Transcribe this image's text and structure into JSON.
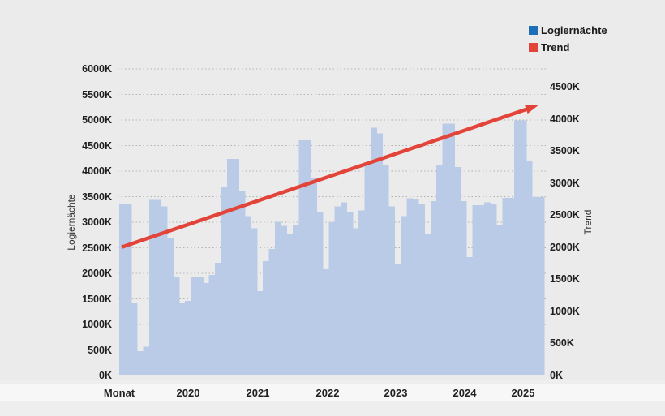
{
  "legend": {
    "items": [
      {
        "label": "Logiernächte",
        "color": "#1d6fb8"
      },
      {
        "label": "Trend",
        "color": "#e3443a"
      }
    ]
  },
  "axes": {
    "left": {
      "title": "Logiernächte",
      "ticks": [
        "0K",
        "500K",
        "1000K",
        "1500K",
        "2000K",
        "2500K",
        "3000K",
        "3500K",
        "4000K",
        "4500K",
        "5000K",
        "5500K",
        "6000K"
      ]
    },
    "right": {
      "title": "Trend",
      "ticks": [
        "0K",
        "500K",
        "1000K",
        "1500K",
        "2000K",
        "2500K",
        "3000K",
        "3500K",
        "4000K",
        "4500K"
      ]
    },
    "x": {
      "title": "Monat",
      "year_labels": [
        "2020",
        "2021",
        "2022",
        "2023",
        "2024",
        "2025"
      ]
    }
  },
  "chart_data": {
    "type": "bar",
    "title": "",
    "x": [
      "2020-01",
      "2020-02",
      "2020-03",
      "2020-04",
      "2020-05",
      "2020-06",
      "2020-07",
      "2020-08",
      "2020-09",
      "2020-10",
      "2020-11",
      "2020-12",
      "2021-01",
      "2021-02",
      "2021-03",
      "2021-04",
      "2021-05",
      "2021-06",
      "2021-07",
      "2021-08",
      "2021-09",
      "2021-10",
      "2021-11",
      "2021-12",
      "2022-01",
      "2022-02",
      "2022-03",
      "2022-04",
      "2022-05",
      "2022-06",
      "2022-07",
      "2022-08",
      "2022-09",
      "2022-10",
      "2022-11",
      "2022-12",
      "2023-01",
      "2023-02",
      "2023-03",
      "2023-04",
      "2023-05",
      "2023-06",
      "2023-07",
      "2023-08",
      "2023-09",
      "2023-10",
      "2023-11",
      "2023-12",
      "2024-01",
      "2024-02",
      "2024-03",
      "2024-04",
      "2024-05",
      "2024-06",
      "2024-07",
      "2024-08",
      "2024-09",
      "2024-10",
      "2024-11",
      "2024-12",
      "2025-01",
      "2025-02",
      "2025-03",
      "2025-04",
      "2025-05",
      "2025-06",
      "2025-07",
      "2025-08",
      "2025-09",
      "2025-10",
      "2025-11"
    ],
    "series": [
      {
        "name": "Logiernächte",
        "render": "bar",
        "axis": "left",
        "color": "#b9cbe7",
        "unit": "K",
        "values": [
          3360,
          3360,
          1410,
          480,
          560,
          3440,
          3440,
          3310,
          2690,
          1920,
          1410,
          1460,
          1920,
          1920,
          1810,
          1970,
          2210,
          3680,
          4240,
          4240,
          3600,
          3120,
          2880,
          1650,
          2240,
          2480,
          3010,
          2930,
          2770,
          2950,
          4600,
          4600,
          3870,
          3200,
          2080,
          3000,
          3310,
          3390,
          3200,
          2880,
          3230,
          4160,
          4850,
          4740,
          4130,
          3310,
          2190,
          3120,
          3470,
          3450,
          3360,
          2770,
          3410,
          4130,
          4930,
          4930,
          4080,
          3410,
          2320,
          3330,
          3330,
          3390,
          3360,
          2950,
          3480,
          3480,
          4990,
          4990,
          4190,
          3490,
          3490
        ]
      },
      {
        "name": "Trend",
        "render": "line-arrow",
        "axis": "right",
        "color": "#e3443a",
        "unit": "K",
        "start_value": 2000,
        "end_value": 4200
      }
    ],
    "left_axis": {
      "label": "Logiernächte",
      "range": [
        0,
        6000
      ],
      "tick_step": 500,
      "unit": "K"
    },
    "right_axis": {
      "label": "Trend",
      "range": [
        0,
        4500
      ],
      "tick_step": 500,
      "unit": "K"
    },
    "x_axis": {
      "label": "Monat",
      "tick_labels": [
        "2020",
        "2021",
        "2022",
        "2023",
        "2024",
        "2025"
      ]
    },
    "grid": "dotted-horizontal",
    "legend_position": "top-right"
  }
}
